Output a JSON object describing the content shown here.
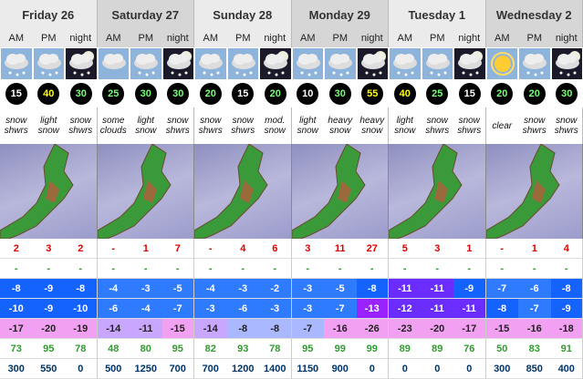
{
  "days": [
    "Friday 26",
    "Saturday 27",
    "Sunday 28",
    "Monday 29",
    "Tuesday 1",
    "Wednesday 2"
  ],
  "periods": [
    "AM",
    "PM",
    "night"
  ],
  "forecasts": [
    {
      "wind": "15",
      "summary": "snow shwrs",
      "snow": "2",
      "rain": "-",
      "max": "-8",
      "min": "-10",
      "chill": "-17",
      "humidity": "73",
      "freezing": "300"
    },
    {
      "wind": "40",
      "summary": "light snow",
      "snow": "3",
      "rain": "-",
      "max": "-9",
      "min": "-9",
      "chill": "-20",
      "humidity": "95",
      "freezing": "550"
    },
    {
      "wind": "30",
      "summary": "snow shwrs",
      "snow": "2",
      "rain": "-",
      "max": "-8",
      "min": "-10",
      "chill": "-19",
      "humidity": "78",
      "freezing": "0"
    },
    {
      "wind": "25",
      "summary": "some clouds",
      "snow": "-",
      "rain": "-",
      "max": "-4",
      "min": "-6",
      "chill": "-14",
      "humidity": "48",
      "freezing": "500"
    },
    {
      "wind": "30",
      "summary": "light snow",
      "snow": "1",
      "rain": "-",
      "max": "-3",
      "min": "-4",
      "chill": "-11",
      "humidity": "80",
      "freezing": "1250"
    },
    {
      "wind": "30",
      "summary": "snow shwrs",
      "snow": "7",
      "rain": "-",
      "max": "-5",
      "min": "-7",
      "chill": "-15",
      "humidity": "95",
      "freezing": "700"
    },
    {
      "wind": "20",
      "summary": "snow shwrs",
      "snow": "-",
      "rain": "-",
      "max": "-4",
      "min": "-3",
      "chill": "-14",
      "humidity": "82",
      "freezing": "700"
    },
    {
      "wind": "15",
      "summary": "snow shwrs",
      "snow": "4",
      "rain": "-",
      "max": "-3",
      "min": "-6",
      "chill": "-8",
      "humidity": "93",
      "freezing": "1200"
    },
    {
      "wind": "20",
      "summary": "mod. snow",
      "snow": "6",
      "rain": "-",
      "max": "-2",
      "min": "-3",
      "chill": "-8",
      "humidity": "78",
      "freezing": "1400"
    },
    {
      "wind": "10",
      "summary": "light snow",
      "snow": "3",
      "rain": "-",
      "max": "-3",
      "min": "-3",
      "chill": "-7",
      "humidity": "95",
      "freezing": "1150"
    },
    {
      "wind": "30",
      "summary": "heavy snow",
      "snow": "11",
      "rain": "-",
      "max": "-5",
      "min": "-7",
      "chill": "-16",
      "humidity": "99",
      "freezing": "900"
    },
    {
      "wind": "55",
      "summary": "heavy snow",
      "snow": "27",
      "rain": "-",
      "max": "-8",
      "min": "-13",
      "chill": "-26",
      "humidity": "99",
      "freezing": "0"
    },
    {
      "wind": "40",
      "summary": "light snow",
      "snow": "5",
      "rain": "-",
      "max": "-11",
      "min": "-12",
      "chill": "-23",
      "humidity": "89",
      "freezing": "0"
    },
    {
      "wind": "25",
      "summary": "snow shwrs",
      "snow": "3",
      "rain": "-",
      "max": "-11",
      "min": "-11",
      "chill": "-20",
      "humidity": "89",
      "freezing": "0"
    },
    {
      "wind": "15",
      "summary": "snow shwrs",
      "snow": "1",
      "rain": "-",
      "max": "-9",
      "min": "-11",
      "chill": "-17",
      "humidity": "76",
      "freezing": "0"
    },
    {
      "wind": "20",
      "summary": "clear",
      "snow": "-",
      "rain": "-",
      "max": "-7",
      "min": "-8",
      "chill": "-15",
      "humidity": "50",
      "freezing": "300"
    },
    {
      "wind": "20",
      "summary": "snow shwrs",
      "snow": "1",
      "rain": "-",
      "max": "-6",
      "min": "-7",
      "chill": "-16",
      "humidity": "83",
      "freezing": "850"
    },
    {
      "wind": "30",
      "summary": "snow shwrs",
      "snow": "4",
      "rain": "-",
      "max": "-8",
      "min": "-9",
      "chill": "-18",
      "humidity": "91",
      "freezing": "400"
    }
  ]
}
